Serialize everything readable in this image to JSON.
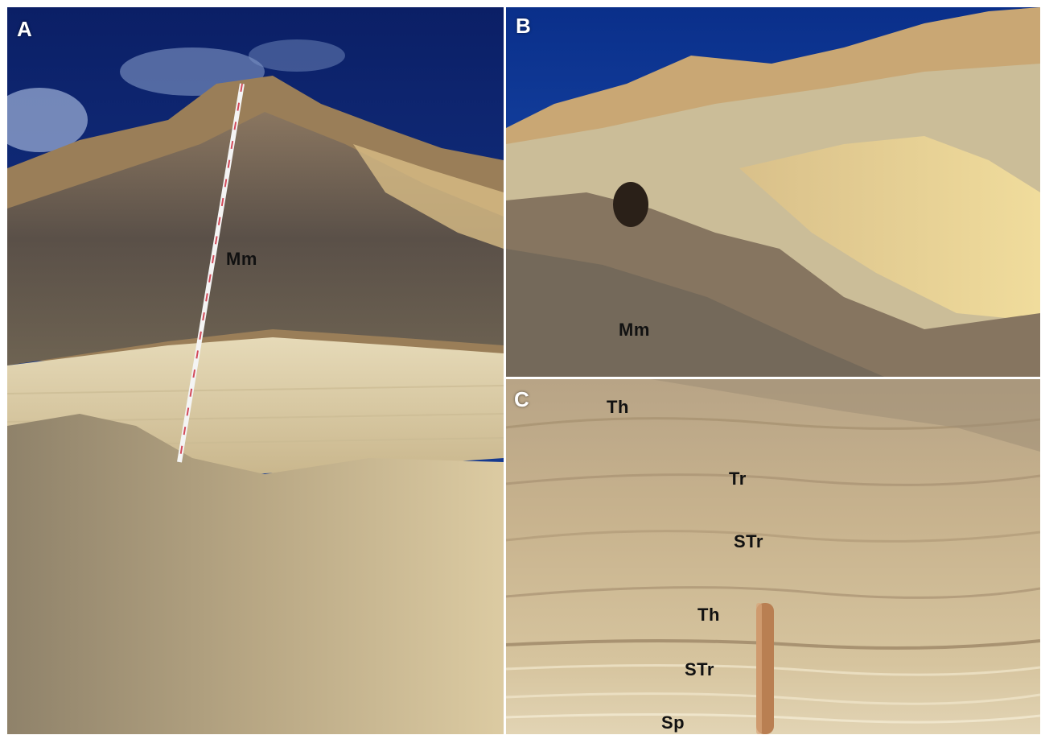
{
  "figure": {
    "panels": [
      {
        "letter": "A",
        "facies_labels": [
          "Mm"
        ]
      },
      {
        "letter": "B",
        "facies_labels": [
          "Mm"
        ]
      },
      {
        "letter": "C",
        "facies_labels": [
          "Th",
          "Tr",
          "STr",
          "Th",
          "STr",
          "Sp"
        ]
      }
    ]
  },
  "colors": {
    "sky": "#0d2a7a",
    "dark_mud": "#5e5348",
    "pale_sand": "#e2d2a8",
    "yellow_sand": "#e8cf8a",
    "scree": "#a8977a",
    "label_text": "#111111",
    "panel_letter": "#ffffff"
  }
}
